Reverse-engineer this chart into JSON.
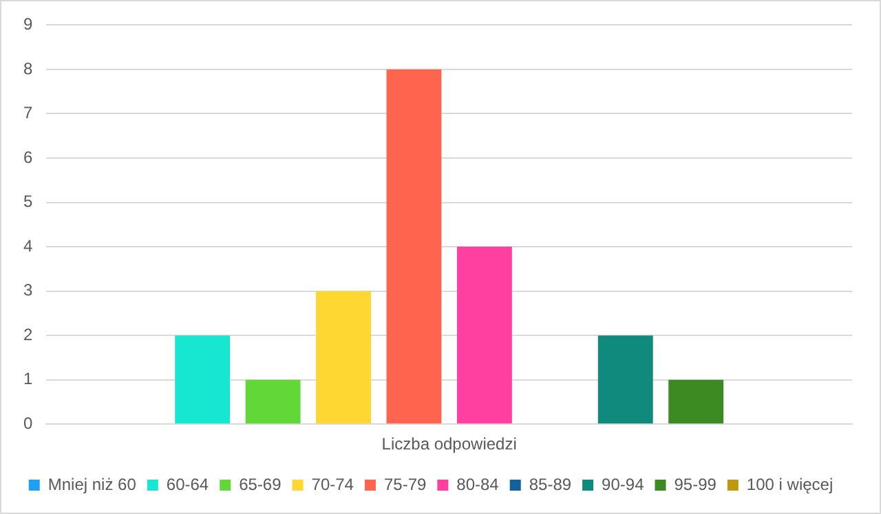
{
  "chart_data": {
    "type": "bar",
    "categories": [
      "Liczba odpowiedzi"
    ],
    "series": [
      {
        "name": "Mniej niż 60",
        "color": "#1ea0f0",
        "values": [
          0
        ]
      },
      {
        "name": "60-64",
        "color": "#17e6d0",
        "values": [
          2
        ]
      },
      {
        "name": "65-69",
        "color": "#62d838",
        "values": [
          1
        ]
      },
      {
        "name": "70-74",
        "color": "#ffd732",
        "values": [
          3
        ]
      },
      {
        "name": "75-79",
        "color": "#ff644e",
        "values": [
          8
        ]
      },
      {
        "name": "80-84",
        "color": "#ff40a0",
        "values": [
          4
        ]
      },
      {
        "name": "85-89",
        "color": "#12609e",
        "values": [
          0
        ]
      },
      {
        "name": "90-94",
        "color": "#0f8a7c",
        "values": [
          2
        ]
      },
      {
        "name": "95-99",
        "color": "#3b8a22",
        "values": [
          1
        ]
      },
      {
        "name": "100 i więcej",
        "color": "#c0980e",
        "values": [
          0
        ]
      }
    ],
    "ylim": [
      0,
      9
    ],
    "yticks": [
      0,
      1,
      2,
      3,
      4,
      5,
      6,
      7,
      8,
      9
    ],
    "grid": "y",
    "legend": "bottom"
  }
}
